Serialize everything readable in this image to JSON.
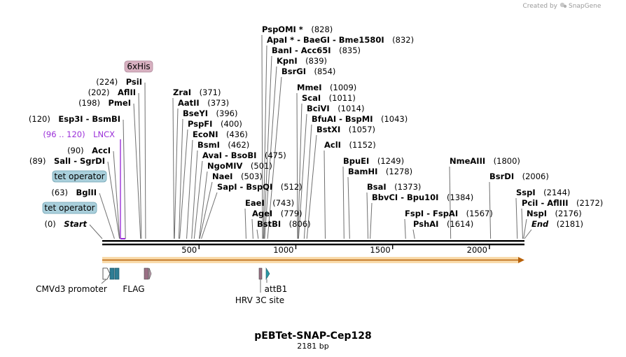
{
  "header": {
    "created_by": "Created by",
    "app_name": "SnapGene"
  },
  "plasmid": {
    "name": "pEBTet-SNAP-Cep128",
    "length_label": "2181 bp",
    "length_bp": 2181
  },
  "axis": {
    "ticks": [
      {
        "value": 500,
        "label": "500"
      },
      {
        "value": 1000,
        "label": "1000"
      },
      {
        "value": 1500,
        "label": "1500"
      },
      {
        "value": 2000,
        "label": "2000"
      }
    ]
  },
  "colors": {
    "tet_operator_fill": "#a9cfdb",
    "his_tag_fill": "#d7b0c0",
    "lncx_color": "#9b30d9",
    "orf_fill": "#f2b044",
    "orf_arrow": "#b8620a",
    "cmv_fill": "#ffffff",
    "flag_fill": "#2f7d94",
    "hrv_fill": "#9a6f84",
    "attb1_fill": "#2a9aa6"
  },
  "sites": [
    {
      "pos": "(0)",
      "name": "Start",
      "bp": 0,
      "style": "italic"
    },
    {
      "pos": "(63)",
      "name": "BglII",
      "bp": 63
    },
    {
      "pos": "(89)",
      "name": "SalI - SgrDI",
      "bp": 89
    },
    {
      "pos": "(90)",
      "name": "AccI",
      "bp": 90
    },
    {
      "pos": "(96 .. 120)",
      "name": "LNCX",
      "bp": 96,
      "feature": true
    },
    {
      "pos": "(120)",
      "name": "Esp3I - BsmBI",
      "bp": 120
    },
    {
      "pos": "(198)",
      "name": "PmeI",
      "bp": 198
    },
    {
      "pos": "(202)",
      "name": "AflII",
      "bp": 202
    },
    {
      "pos": "(224)",
      "name": "PsiI",
      "bp": 224
    },
    {
      "name": "ZraI",
      "pos": "(371)",
      "bp": 371
    },
    {
      "name": "AatII",
      "pos": "(373)",
      "bp": 373
    },
    {
      "name": "BseYI",
      "pos": "(396)",
      "bp": 396
    },
    {
      "name": "PspFI",
      "pos": "(400)",
      "bp": 400
    },
    {
      "name": "EcoNI",
      "pos": "(436)",
      "bp": 436
    },
    {
      "name": "BsmI",
      "pos": "(462)",
      "bp": 462
    },
    {
      "name": "AvaI - BsoBI",
      "pos": "(475)",
      "bp": 475
    },
    {
      "name": "NgoMIV",
      "pos": "(501)",
      "bp": 501
    },
    {
      "name": "NaeI",
      "pos": "(503)",
      "bp": 503
    },
    {
      "name": "SapI - BspQI",
      "pos": "(512)",
      "bp": 512
    },
    {
      "name": "EaeI",
      "pos": "(743)",
      "bp": 743
    },
    {
      "name": "AgeI",
      "pos": "(779)",
      "bp": 779
    },
    {
      "name": "BstBI",
      "pos": "(806)",
      "bp": 806
    },
    {
      "name": "PspOMI *",
      "pos": "(828)",
      "bp": 828
    },
    {
      "name": "ApaI * - BaeGI - Bme1580I",
      "pos": "(832)",
      "bp": 832
    },
    {
      "name": "BanI - Acc65I",
      "pos": "(835)",
      "bp": 835
    },
    {
      "name": "KpnI",
      "pos": "(839)",
      "bp": 839
    },
    {
      "name": "BsrGI",
      "pos": "(854)",
      "bp": 854
    },
    {
      "name": "MmeI",
      "pos": "(1009)",
      "bp": 1009
    },
    {
      "name": "ScaI",
      "pos": "(1011)",
      "bp": 1011
    },
    {
      "name": "BciVI",
      "pos": "(1014)",
      "bp": 1014
    },
    {
      "name": "BfuAI - BspMI",
      "pos": "(1043)",
      "bp": 1043
    },
    {
      "name": "BstXI",
      "pos": "(1057)",
      "bp": 1057
    },
    {
      "name": "AclI",
      "pos": "(1152)",
      "bp": 1152
    },
    {
      "name": "BpuEI",
      "pos": "(1249)",
      "bp": 1249
    },
    {
      "name": "BamHI",
      "pos": "(1278)",
      "bp": 1278
    },
    {
      "name": "BsaI",
      "pos": "(1373)",
      "bp": 1373
    },
    {
      "name": "BbvCI - Bpu10I",
      "pos": "(1384)",
      "bp": 1384
    },
    {
      "name": "FspI - FspAI",
      "pos": "(1567)",
      "bp": 1567
    },
    {
      "name": "PshAI",
      "pos": "(1614)",
      "bp": 1614
    },
    {
      "name": "NmeAIII",
      "pos": "(1800)",
      "bp": 1800
    },
    {
      "name": "BsrDI",
      "pos": "(2006)",
      "bp": 2006
    },
    {
      "name": "SspI",
      "pos": "(2144)",
      "bp": 2144
    },
    {
      "name": "PciI - AflIII",
      "pos": "(2172)",
      "bp": 2172
    },
    {
      "name": "NspI",
      "pos": "(2176)",
      "bp": 2176
    },
    {
      "name": "End",
      "pos": "(2181)",
      "bp": 2181,
      "style": "italic"
    }
  ],
  "features": {
    "tet_operator_1": "tet operator",
    "tet_operator_2": "tet operator",
    "his_tag": "6xHis",
    "cmv_promoter": "CMVd3 promoter",
    "flag": "FLAG",
    "hrv": "HRV 3C site",
    "attb1": "attB1"
  }
}
